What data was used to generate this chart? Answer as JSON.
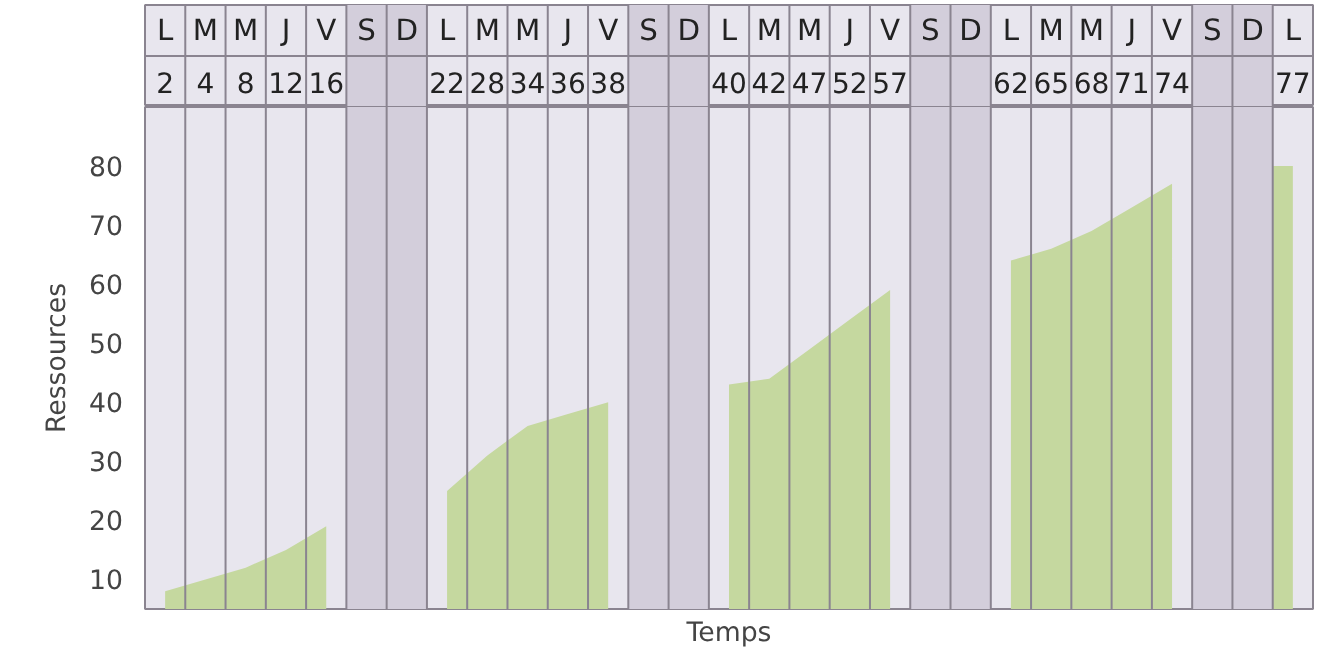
{
  "chart_data": {
    "type": "area",
    "xlabel": "Temps",
    "ylabel": "Ressources",
    "categories": [
      "L",
      "M",
      "M",
      "J",
      "V",
      "S",
      "D",
      "L",
      "M",
      "M",
      "J",
      "V",
      "S",
      "D",
      "L",
      "M",
      "M",
      "J",
      "V",
      "S",
      "D",
      "L",
      "M",
      "M",
      "J",
      "V",
      "S",
      "D",
      "L"
    ],
    "values": [
      8,
      10,
      12,
      15,
      19,
      null,
      null,
      25,
      31,
      36,
      38,
      40,
      null,
      null,
      43,
      44,
      49,
      54,
      59,
      null,
      null,
      64,
      66,
      69,
      73,
      77,
      null,
      null,
      80
    ],
    "annotations": [
      "2",
      "4",
      "8",
      "12",
      "16",
      "22",
      "28",
      "34",
      "36",
      "38",
      "40",
      "42",
      "47",
      "52",
      "57",
      "62",
      "65",
      "68",
      "71",
      "74",
      "77"
    ],
    "color": "#c5d89f",
    "grid": false,
    "ylim": [
      5,
      90
    ],
    "yticks": [
      10,
      20,
      30,
      40,
      50,
      60,
      70,
      80
    ]
  }
}
